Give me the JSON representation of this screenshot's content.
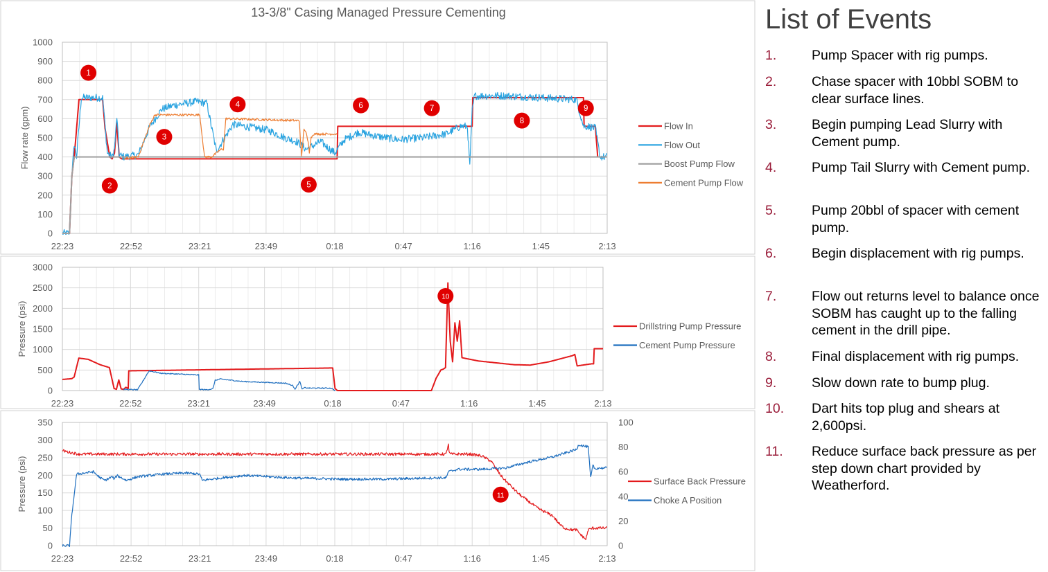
{
  "charts": [
    {
      "id": "flow",
      "title": "13-3/8\" Casing Managed Pressure Cementing",
      "ylabel": "Flow rate (gpm)",
      "x_ticks": [
        "22:23",
        "22:52",
        "23:21",
        "23:49",
        "0:18",
        "0:47",
        "1:16",
        "1:45",
        "2:13"
      ],
      "y_ticks": [
        "0",
        "100",
        "200",
        "300",
        "400",
        "500",
        "600",
        "700",
        "800",
        "900",
        "1000"
      ],
      "ylim": [
        0,
        1000
      ],
      "legend": [
        {
          "name": "Flow In",
          "color": "#e31a1c"
        },
        {
          "name": "Flow Out",
          "color": "#29a3e0"
        },
        {
          "name": "Boost Pump Flow",
          "color": "#a0a0a0"
        },
        {
          "name": "Cement Pump Flow",
          "color": "#ed7d31"
        }
      ],
      "markers": [
        {
          "label": "1",
          "t": "22:34",
          "y": 840
        },
        {
          "label": "2",
          "t": "22:43",
          "y": 250
        },
        {
          "label": "3",
          "t": "23:06",
          "y": 505
        },
        {
          "label": "4",
          "t": "23:37",
          "y": 675
        },
        {
          "label": "5",
          "t": "0:07",
          "y": 255
        },
        {
          "label": "6",
          "t": "0:29",
          "y": 670
        },
        {
          "label": "7",
          "t": "0:59",
          "y": 655
        },
        {
          "label": "8",
          "t": "1:37",
          "y": 590
        },
        {
          "label": "9",
          "t": "2:04",
          "y": 655
        }
      ]
    },
    {
      "id": "pump-pressure",
      "ylabel": "Pressure (psi)",
      "x_ticks": [
        "22:23",
        "22:52",
        "23:21",
        "23:49",
        "0:18",
        "0:47",
        "1:16",
        "1:45",
        "2:13"
      ],
      "y_ticks": [
        "0",
        "500",
        "1000",
        "1500",
        "2000",
        "2500",
        "3000"
      ],
      "ylim": [
        0,
        3000
      ],
      "legend": [
        {
          "name": "Drillstring Pump Pressure",
          "color": "#e31a1c"
        },
        {
          "name": "Cement Pump Pressure",
          "color": "#1f6fbf"
        }
      ],
      "markers": [
        {
          "label": "10",
          "t": "1:06",
          "y": 2300
        }
      ]
    },
    {
      "id": "sbp",
      "ylabel": "Pressure (psi)",
      "x_ticks": [
        "22:23",
        "22:52",
        "23:21",
        "23:49",
        "0:18",
        "0:47",
        "1:16",
        "1:45",
        "2:13"
      ],
      "y_ticks": [
        "0",
        "50",
        "100",
        "150",
        "200",
        "250",
        "300",
        "350"
      ],
      "ylim": [
        0,
        350
      ],
      "y2_ticks": [
        "0",
        "20",
        "40",
        "60",
        "80",
        "100"
      ],
      "y2lim": [
        0,
        100
      ],
      "legend": [
        {
          "name": "Surface Back Pressure",
          "color": "#e31a1c"
        },
        {
          "name": "Choke A Position",
          "color": "#1f6fbf"
        }
      ],
      "markers": [
        {
          "label": "11",
          "t": "1:28",
          "y": 145
        }
      ]
    }
  ],
  "chart_data": [
    {
      "type": "line",
      "title": "13-3/8\" Casing Managed Pressure Cementing",
      "xlabel": "",
      "ylabel": "Flow rate (gpm)",
      "x_range": [
        "22:23",
        "2:13"
      ],
      "ylim": [
        0,
        1000
      ],
      "grid": true,
      "legend_position": "right",
      "series": [
        {
          "name": "Flow In",
          "color": "#e31a1c",
          "noise": 0,
          "x": [
            "22:23",
            "22:26",
            "22:27",
            "22:28",
            "22:30",
            "22:40",
            "22:41",
            "22:43",
            "22:44",
            "22:45",
            "22:46",
            "22:47",
            "22:48",
            "22:49",
            "22:50",
            "0:19",
            "0:19",
            "1:16",
            "1:16",
            "2:03",
            "2:03",
            "2:08",
            "2:09"
          ],
          "y": [
            0,
            0,
            300,
            400,
            700,
            700,
            550,
            400,
            390,
            420,
            580,
            400,
            390,
            390,
            390,
            390,
            560,
            560,
            710,
            710,
            560,
            560,
            400
          ]
        },
        {
          "name": "Flow Out",
          "color": "#29a3e0",
          "noise": 20,
          "x": [
            "22:23",
            "22:26",
            "22:27",
            "22:28",
            "22:29",
            "22:31",
            "22:40",
            "22:42",
            "22:44",
            "22:45",
            "22:46",
            "22:47",
            "22:49",
            "22:55",
            "23:00",
            "23:05",
            "23:10",
            "23:20",
            "23:24",
            "23:28",
            "23:35",
            "23:40",
            "23:50",
            "23:57",
            "0:02",
            "0:06",
            "0:12",
            "0:18",
            "0:22",
            "0:28",
            "0:35",
            "0:45",
            "0:55",
            "1:05",
            "1:08",
            "1:11",
            "1:14",
            "1:15",
            "1:16",
            "1:17",
            "1:30",
            "2:00",
            "2:03",
            "2:05",
            "2:08",
            "2:10",
            "2:13"
          ],
          "y": [
            0,
            0,
            300,
            470,
            400,
            710,
            710,
            420,
            400,
            440,
            610,
            410,
            400,
            410,
            560,
            650,
            670,
            690,
            680,
            430,
            570,
            560,
            540,
            500,
            480,
            440,
            480,
            420,
            490,
            530,
            510,
            490,
            500,
            520,
            540,
            560,
            560,
            350,
            640,
            720,
            720,
            700,
            560,
            560,
            550,
            400,
            400
          ]
        },
        {
          "name": "Boost Pump Flow",
          "color": "#a0a0a0",
          "noise": 0,
          "x": [
            "22:23",
            "22:26",
            "22:27",
            "22:28",
            "2:13"
          ],
          "y": [
            0,
            0,
            300,
            400,
            400
          ]
        },
        {
          "name": "Cement Pump Flow",
          "color": "#ed7d31",
          "noise": 6,
          "x": [
            "22:49",
            "22:55",
            "23:00",
            "23:02",
            "23:21",
            "23:23",
            "23:26",
            "23:28",
            "23:30",
            "23:31",
            "23:32",
            "0:03",
            "0:04",
            "0:05",
            "0:06",
            "0:07",
            "0:07",
            "0:08",
            "0:09",
            "0:11",
            "0:11",
            "0:19",
            "0:19"
          ],
          "y": [
            390,
            400,
            570,
            620,
            620,
            400,
            400,
            420,
            440,
            440,
            600,
            590,
            400,
            550,
            520,
            460,
            400,
            500,
            520,
            520,
            520,
            520,
            390
          ]
        }
      ]
    },
    {
      "type": "line",
      "xlabel": "",
      "ylabel": "Pressure (psi)",
      "x_range": [
        "22:23",
        "2:13"
      ],
      "ylim": [
        0,
        3000
      ],
      "grid": true,
      "legend_position": "right",
      "series": [
        {
          "name": "Drillstring Pump Pressure",
          "color": "#e31a1c",
          "noise": 0,
          "x": [
            "22:23",
            "22:27",
            "22:28",
            "22:30",
            "22:34",
            "22:39",
            "22:43",
            "22:45",
            "22:46",
            "22:47",
            "22:48",
            "22:49",
            "22:50",
            "22:51",
            "22:51",
            "0:18",
            "0:19",
            "0:20",
            "1:00",
            "1:02",
            "1:04",
            "1:05",
            "1:06",
            "1:07",
            "1:08",
            "1:09",
            "1:10",
            "1:11",
            "1:12",
            "1:13",
            "1:20",
            "1:35",
            "1:42",
            "1:50",
            "2:00",
            "2:01",
            "2:02",
            "2:08",
            "2:09",
            "2:09",
            "2:13"
          ],
          "y": [
            270,
            290,
            330,
            790,
            760,
            630,
            560,
            50,
            30,
            260,
            40,
            30,
            80,
            50,
            480,
            550,
            50,
            0,
            0,
            300,
            500,
            520,
            560,
            2620,
            1200,
            700,
            1650,
            1200,
            1700,
            800,
            720,
            630,
            620,
            700,
            850,
            880,
            600,
            650,
            650,
            1020,
            1020
          ]
        },
        {
          "name": "Cement Pump Pressure",
          "color": "#1f6fbf",
          "noise": 12,
          "x": [
            "22:49",
            "22:55",
            "22:58",
            "22:59",
            "23:00",
            "23:05",
            "23:21",
            "23:21",
            "23:24",
            "23:27",
            "23:28",
            "23:30",
            "23:40",
            "23:58",
            "0:01",
            "0:02",
            "0:04",
            "0:05",
            "0:06",
            "0:08",
            "0:17",
            "0:18",
            "0:19"
          ],
          "y": [
            30,
            20,
            300,
            400,
            480,
            420,
            380,
            30,
            20,
            40,
            250,
            280,
            220,
            180,
            120,
            40,
            220,
            30,
            70,
            60,
            60,
            40,
            0
          ]
        }
      ]
    },
    {
      "type": "line",
      "xlabel": "",
      "ylabel": "Pressure (psi)",
      "y2_range": [
        0,
        100
      ],
      "x_range": [
        "22:23",
        "2:13"
      ],
      "ylim": [
        0,
        350
      ],
      "grid": true,
      "legend_position": "right",
      "series": [
        {
          "name": "Surface Back Pressure",
          "color": "#e31a1c",
          "axis": "left",
          "noise": 4,
          "x": [
            "22:23",
            "22:26",
            "22:30",
            "0:00",
            "1:05",
            "1:06",
            "1:06",
            "1:07",
            "1:15",
            "1:20",
            "1:24",
            "1:26",
            "1:28",
            "1:30",
            "1:33",
            "1:36",
            "1:39",
            "1:42",
            "1:44",
            "1:47",
            "1:50",
            "1:53",
            "1:55",
            "1:58",
            "2:00",
            "2:02",
            "2:04",
            "2:05",
            "2:07",
            "2:13"
          ],
          "y": [
            270,
            265,
            260,
            260,
            260,
            290,
            265,
            260,
            260,
            255,
            240,
            220,
            200,
            185,
            165,
            145,
            130,
            115,
            105,
            95,
            85,
            60,
            50,
            45,
            45,
            30,
            18,
            45,
            50,
            50
          ]
        },
        {
          "name": "Choke A Position",
          "color": "#1f6fbf",
          "axis": "right",
          "noise": 1,
          "x": [
            "22:23",
            "22:26",
            "22:27",
            "22:29",
            "22:36",
            "22:39",
            "22:41",
            "22:44",
            "22:45",
            "22:46",
            "22:50",
            "22:55",
            "23:05",
            "23:15",
            "23:21",
            "23:22",
            "23:30",
            "23:40",
            "0:00",
            "0:20",
            "0:40",
            "1:00",
            "1:05",
            "1:06",
            "1:10",
            "1:20",
            "1:30",
            "1:40",
            "1:50",
            "1:55",
            "2:00",
            "2:01",
            "2:05",
            "2:06",
            "2:07",
            "2:08",
            "2:09",
            "2:13"
          ],
          "y": [
            0,
            0,
            25,
            58,
            60,
            55,
            53,
            56,
            54,
            57,
            53,
            56,
            58,
            59,
            58,
            53,
            55,
            57,
            55,
            54,
            54,
            55,
            55,
            60,
            62,
            62,
            63,
            68,
            72,
            75,
            78,
            82,
            80,
            55,
            65,
            62,
            63,
            63
          ]
        }
      ]
    }
  ],
  "events": {
    "title": "List of Events",
    "items": [
      {
        "num": "1.",
        "text": "Pump Spacer with rig pumps."
      },
      {
        "num": "2.",
        "text": "Chase spacer with 10bbl SOBM to clear surface lines."
      },
      {
        "num": "3.",
        "text": "Begin pumping Lead Slurry with Cement pump."
      },
      {
        "num": "4.",
        "text": "Pump Tail Slurry with Cement pump."
      },
      {
        "num": "5.",
        "text": "Pump 20bbl of spacer with cement pump."
      },
      {
        "num": "6.",
        "text": "Begin displacement with rig pumps."
      },
      {
        "num": "7.",
        "text": "Flow out returns level to balance once SOBM has caught up to the falling cement in the drill pipe."
      },
      {
        "num": "8.",
        "text": "Final displacement with rig pumps."
      },
      {
        "num": "9.",
        "text": "Slow down rate to bump plug."
      },
      {
        "num": "10.",
        "text": "Dart hits top plug and shears at 2,600psi."
      },
      {
        "num": "11.",
        "text": "Reduce surface back pressure as per step down chart provided by Weatherford."
      }
    ]
  }
}
